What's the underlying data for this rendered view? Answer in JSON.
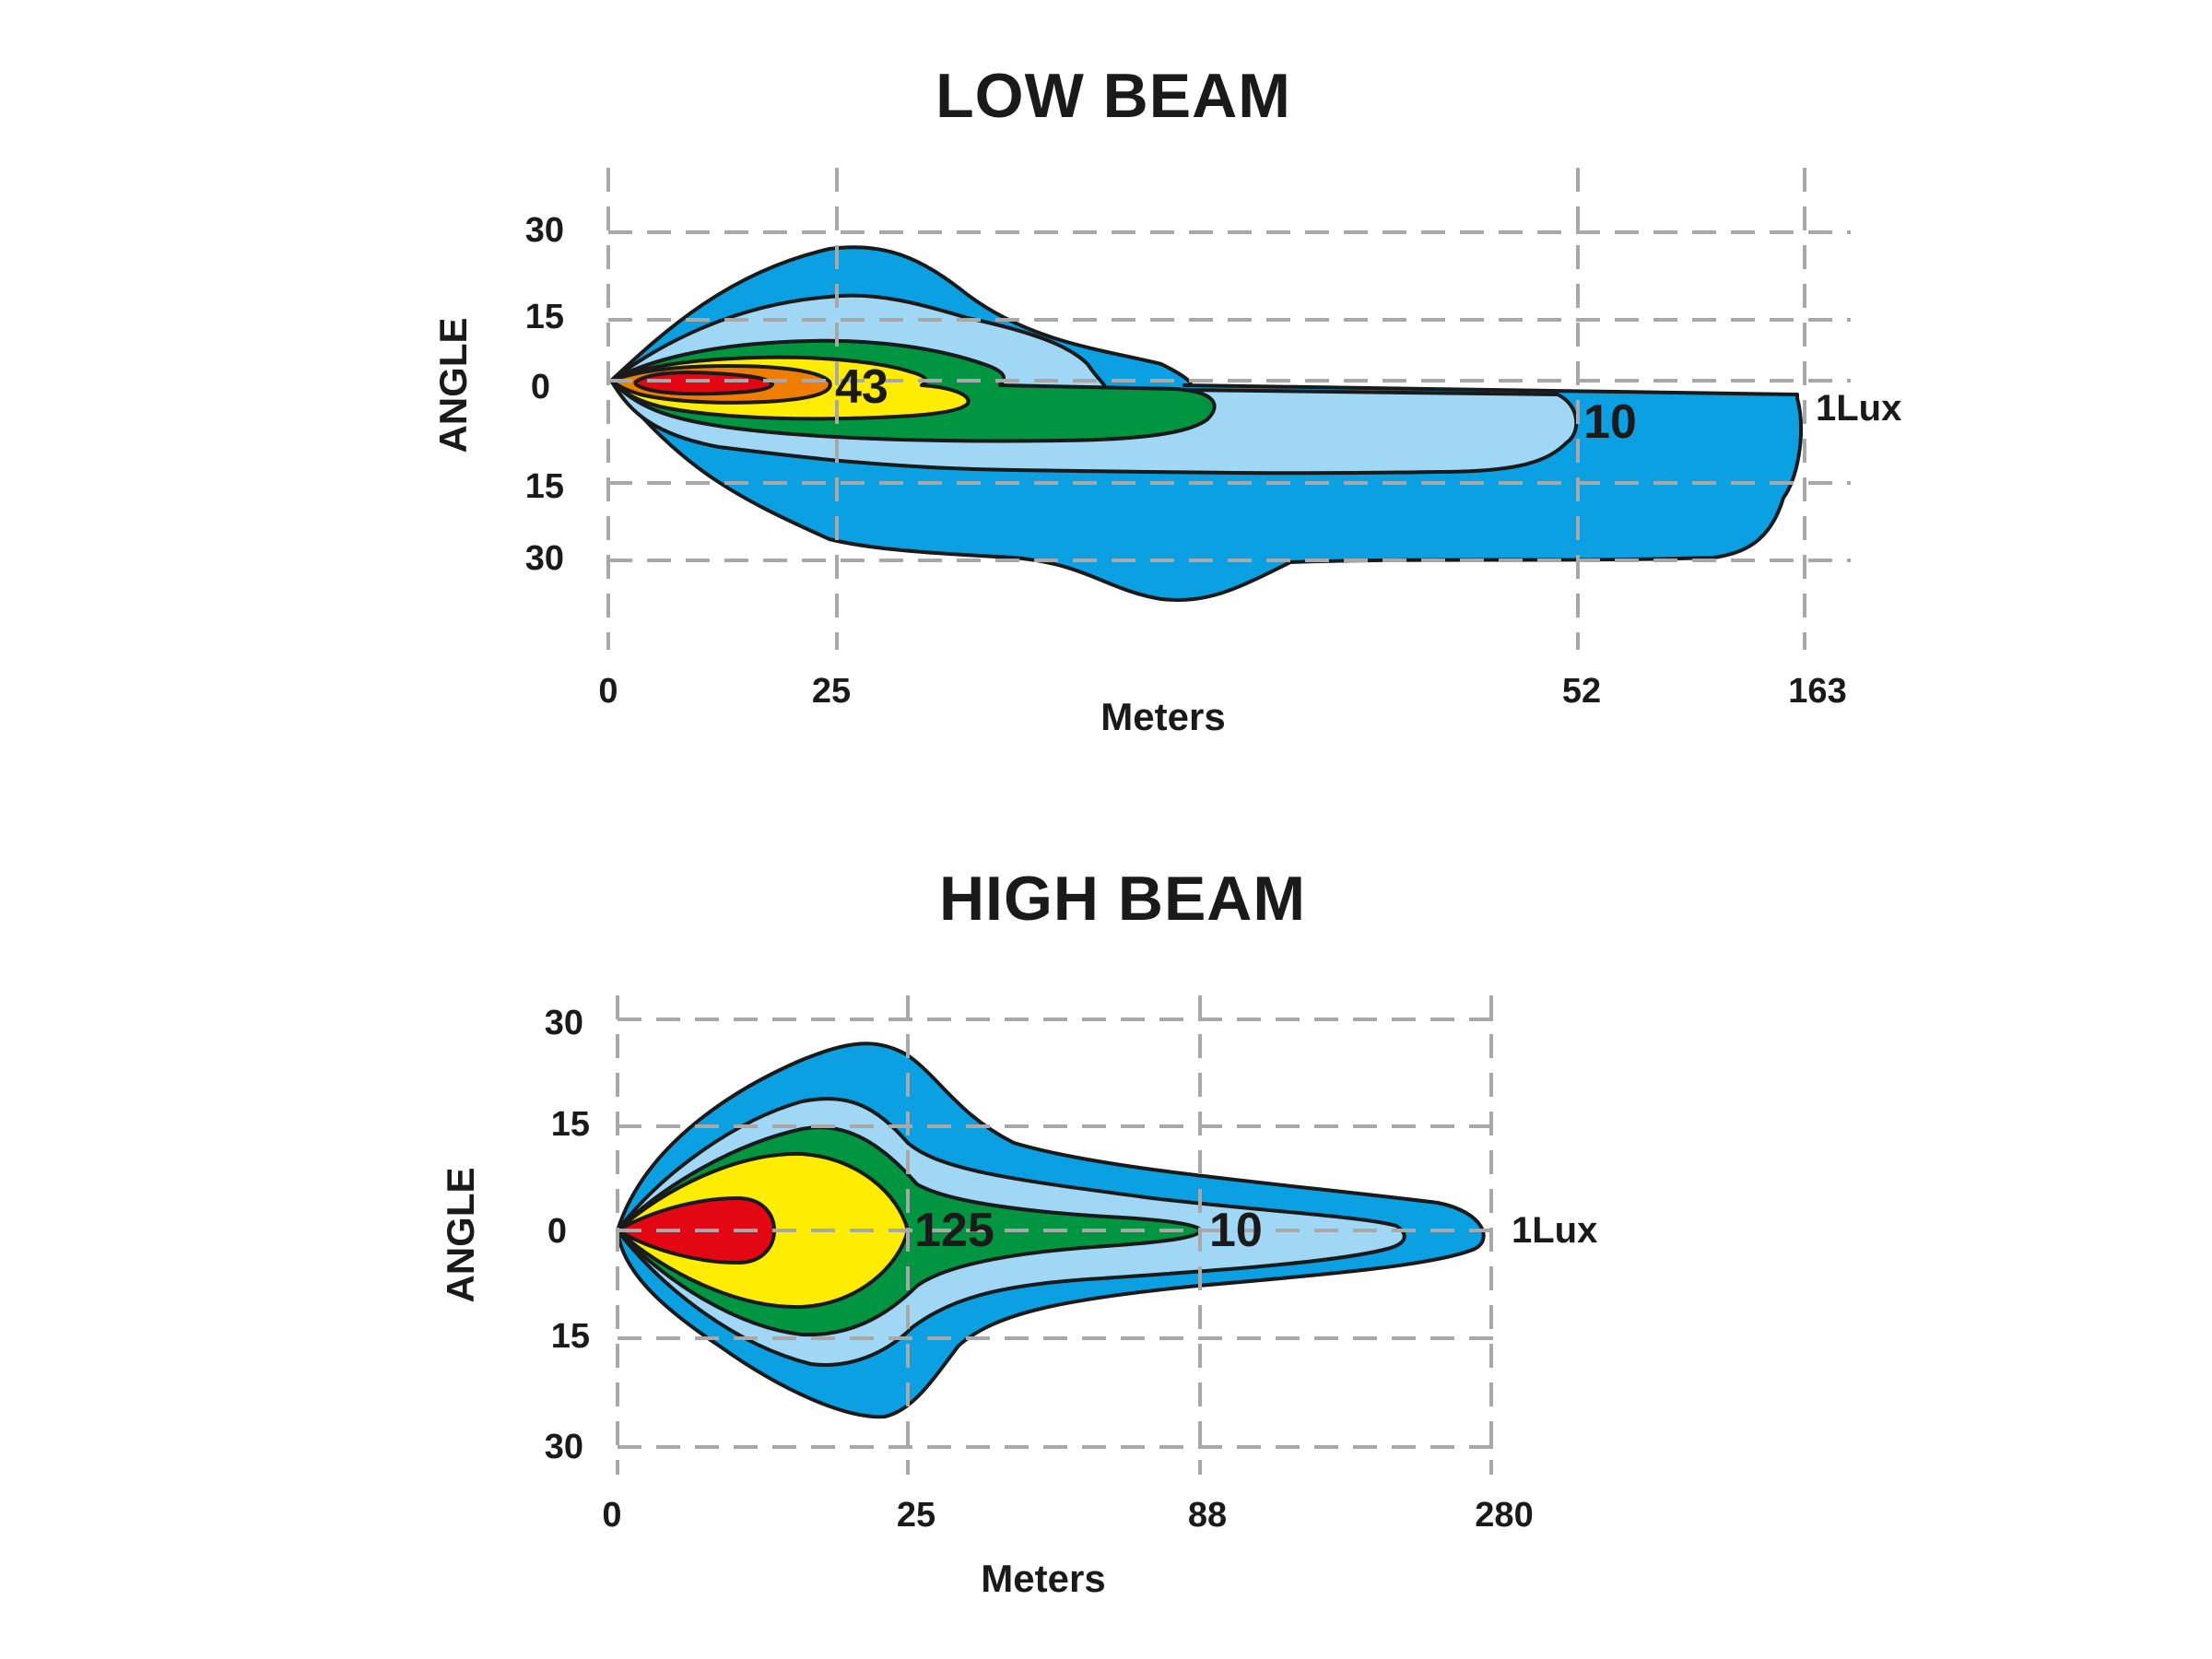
{
  "chart_data": [
    {
      "type": "area",
      "title": "LOW BEAM",
      "xlabel": "Meters",
      "ylabel": "ANGLE",
      "x_ticks": [
        "0",
        "25",
        "52",
        "163"
      ],
      "y_ticks_upper": [
        "30",
        "15",
        "0"
      ],
      "y_ticks_lower": [
        "15",
        "30"
      ],
      "grid": true,
      "zones": [
        {
          "label": "1Lux",
          "color": "#0aa0e2"
        },
        {
          "label": "",
          "color": "#9fd7f4"
        },
        {
          "label": "10",
          "color": "#009540"
        },
        {
          "label": "43",
          "color": "#ffed00"
        },
        {
          "label": "",
          "color": "#ef7d00"
        },
        {
          "label": "",
          "color": "#e30613"
        }
      ]
    },
    {
      "type": "area",
      "title": "HIGH BEAM",
      "xlabel": "Meters",
      "ylabel": "ANGLE",
      "x_ticks": [
        "0",
        "25",
        "88",
        "280"
      ],
      "y_ticks_upper": [
        "30",
        "15",
        "0"
      ],
      "y_ticks_lower": [
        "15",
        "30"
      ],
      "grid": true,
      "zones": [
        {
          "label": "1Lux",
          "color": "#0aa0e2"
        },
        {
          "label": "",
          "color": "#9fd7f4"
        },
        {
          "label": "10",
          "color": "#009540"
        },
        {
          "label": "125",
          "color": "#ffed00"
        },
        {
          "label": "",
          "color": "#e30613"
        }
      ]
    }
  ]
}
